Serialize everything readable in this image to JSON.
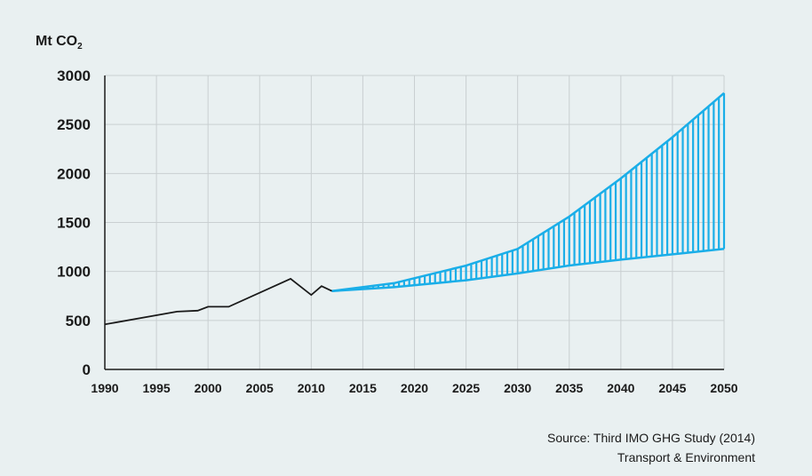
{
  "chart_data": {
    "type": "line",
    "ylabel_prefix": "Mt CO",
    "ylabel_sub": "2",
    "x_ticks": [
      "1990",
      "1995",
      "2000",
      "2005",
      "2010",
      "2015",
      "2020",
      "2025",
      "2030",
      "2035",
      "2040",
      "2045",
      "2050"
    ],
    "y_ticks": [
      "0",
      "500",
      "1000",
      "1500",
      "2000",
      "2500",
      "3000"
    ],
    "xlim": [
      1990,
      2050
    ],
    "ylim": [
      0,
      3000
    ],
    "grid": true,
    "historical": {
      "color": "#1a1a1a",
      "points": [
        [
          1990,
          460
        ],
        [
          1997,
          590
        ],
        [
          1999,
          600
        ],
        [
          2000,
          640
        ],
        [
          2002,
          640
        ],
        [
          2008,
          925
        ],
        [
          2010,
          760
        ],
        [
          2011,
          850
        ],
        [
          2012,
          800
        ]
      ]
    },
    "projection": {
      "color": "#1aaee8",
      "upper": [
        [
          2012,
          800
        ],
        [
          2018,
          880
        ],
        [
          2025,
          1060
        ],
        [
          2030,
          1230
        ],
        [
          2035,
          1560
        ],
        [
          2040,
          1950
        ],
        [
          2045,
          2370
        ],
        [
          2050,
          2820
        ]
      ],
      "lower": [
        [
          2012,
          800
        ],
        [
          2018,
          840
        ],
        [
          2025,
          910
        ],
        [
          2030,
          980
        ],
        [
          2035,
          1060
        ],
        [
          2040,
          1120
        ],
        [
          2045,
          1175
        ],
        [
          2050,
          1230
        ]
      ]
    }
  },
  "source_line1": "Source: Third IMO GHG Study (2014)",
  "source_line2": "Transport & Environment"
}
